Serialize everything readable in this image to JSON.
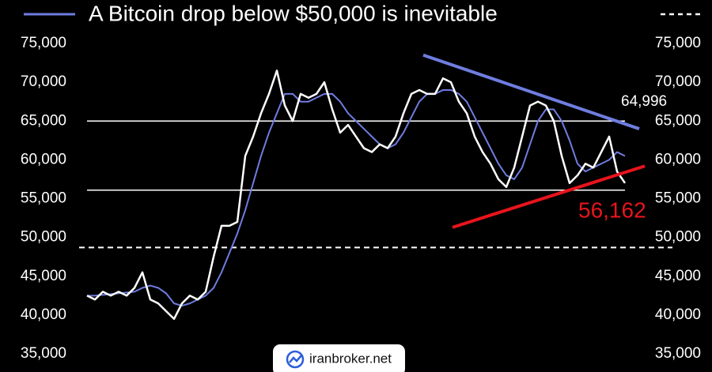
{
  "chart_data": {
    "type": "line",
    "title": "A Bitcoin drop below $50,000 is inevitable",
    "x": [
      0,
      1,
      2,
      3,
      4,
      5,
      6,
      7,
      8,
      9,
      10,
      11,
      12,
      13,
      14,
      15,
      16,
      17,
      18,
      19,
      20,
      21,
      22,
      23,
      24,
      25,
      26,
      27,
      28,
      29,
      30,
      31,
      32,
      33,
      34,
      35,
      36,
      37,
      38,
      39,
      40,
      41,
      42,
      43,
      44,
      45,
      46,
      47,
      48,
      49,
      50,
      51,
      52,
      53,
      54,
      55,
      56,
      57,
      58,
      59,
      60,
      61,
      62,
      63,
      64,
      65,
      66,
      67,
      68
    ],
    "series": [
      {
        "color": "#ffffff",
        "values": [
          42500,
          42000,
          43000,
          42500,
          43000,
          42500,
          43500,
          45500,
          42000,
          41500,
          40500,
          39500,
          41500,
          42500,
          42000,
          43000,
          47500,
          51500,
          51500,
          52000,
          60500,
          63000,
          66000,
          68500,
          71500,
          67000,
          65000,
          68500,
          68000,
          68500,
          70000,
          66500,
          63500,
          64500,
          63000,
          61500,
          61000,
          62000,
          61500,
          63000,
          66000,
          68500,
          69000,
          68500,
          68500,
          70500,
          70000,
          67500,
          66000,
          63000,
          61000,
          59500,
          57500,
          56500,
          59000,
          63000,
          67000,
          67500,
          67000,
          65000,
          60500,
          57000,
          58000,
          59500,
          59000,
          61000,
          63000,
          58500,
          57000
        ]
      },
      {
        "color": "#6f7de0",
        "values": [
          42500,
          42500,
          42600,
          42700,
          42800,
          42900,
          43000,
          43500,
          43800,
          43500,
          42800,
          41500,
          41200,
          41500,
          42000,
          42500,
          43500,
          45500,
          48000,
          50500,
          53500,
          57000,
          60500,
          63500,
          66000,
          68500,
          68500,
          67500,
          67500,
          68000,
          68500,
          68500,
          67500,
          66000,
          65000,
          64000,
          63000,
          62000,
          61500,
          62000,
          63500,
          65500,
          67500,
          68500,
          68500,
          69000,
          69000,
          68500,
          67500,
          65500,
          63500,
          61500,
          59500,
          58000,
          57500,
          59000,
          62000,
          65000,
          66500,
          66500,
          65000,
          62500,
          59500,
          58500,
          59000,
          59500,
          60000,
          61000,
          60500
        ]
      }
    ],
    "xlim": [
      -1,
      72
    ],
    "ylim": [
      35000,
      75000
    ],
    "yticks": [
      {
        "value": 35000,
        "label": "35,000"
      },
      {
        "value": 40000,
        "label": "40,000"
      },
      {
        "value": 45000,
        "label": "45,000"
      },
      {
        "value": 50000,
        "label": "50,000"
      },
      {
        "value": 55000,
        "label": "55,000"
      },
      {
        "value": 60000,
        "label": "60,000"
      },
      {
        "value": 65000,
        "label": "65,000"
      },
      {
        "value": 70000,
        "label": "70,000"
      },
      {
        "value": 75000,
        "label": "75,000"
      }
    ],
    "grid": false,
    "hlines": [
      {
        "value": 65000,
        "color": "#ffffff"
      },
      {
        "value": 56100,
        "color": "#ffffff"
      },
      {
        "value": 48700,
        "color": "#ffffff",
        "dashed": true
      }
    ],
    "trendlines": [
      {
        "x": [
          42.5,
          69.8
        ],
        "values": [
          73500,
          64000
        ],
        "color": "#6f7de0"
      },
      {
        "x": [
          46.2,
          70.5
        ],
        "values": [
          51300,
          59200
        ],
        "color": "#e8141c"
      }
    ],
    "annotations": [
      {
        "text": "64,996",
        "color": "#ffffff"
      },
      {
        "text": "56,162",
        "color": "#e8141c"
      }
    ],
    "watermark": "iranbroker.net"
  }
}
